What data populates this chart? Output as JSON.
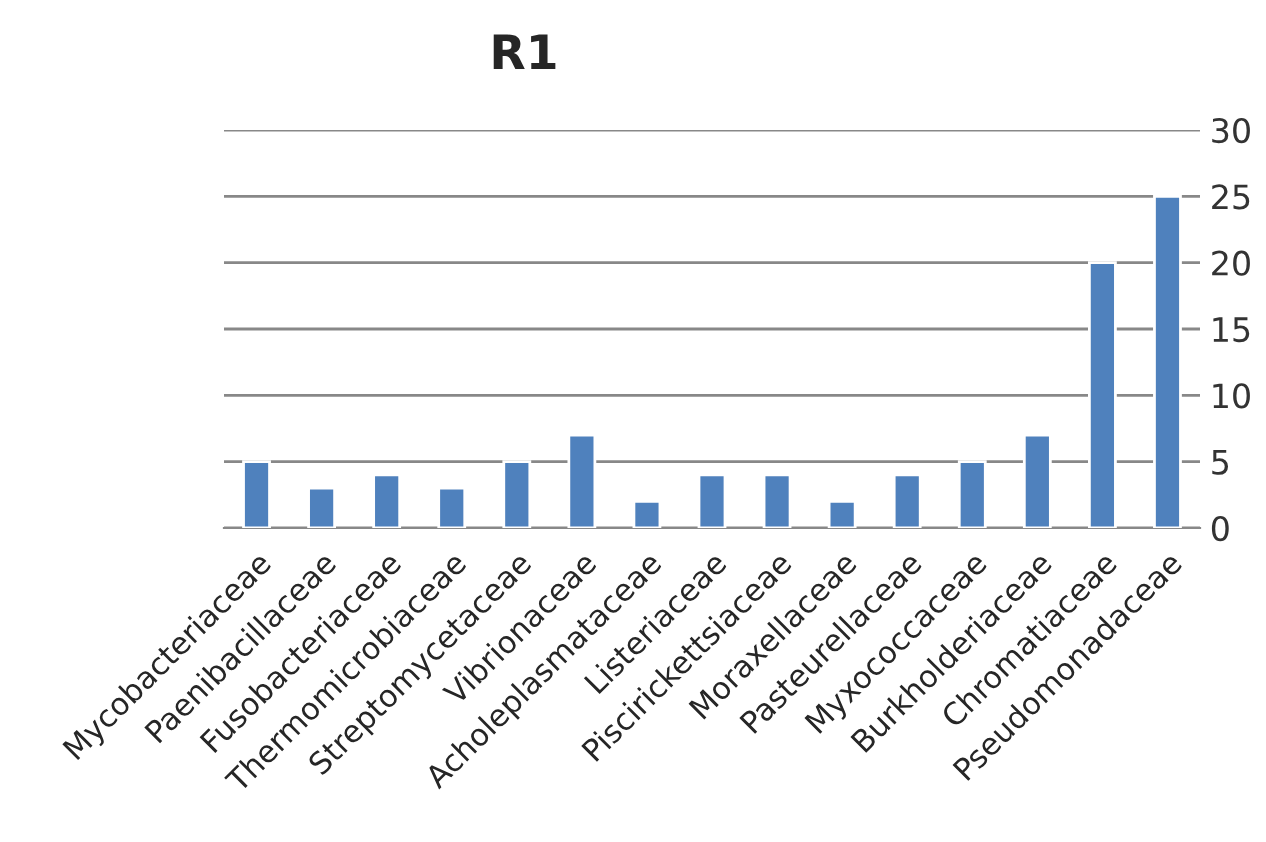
{
  "chart_data": {
    "type": "bar",
    "title": "R1",
    "categories": [
      "Mycobacteriaceae",
      "Paenibacillaceae",
      "Fusobacteriaceae",
      "Thermomicrobiaceae",
      "Streptomycetaceae",
      "Vibrionaceae",
      "Acholeplasmataceae",
      "Listeriaceae",
      "Piscirickettsiaceae",
      "Moraxellaceae",
      "Pasteurellaceae",
      "Myxococcaceae",
      "Burkholderiaceae",
      "Chromatiaceae",
      "Pseudomonadaceae"
    ],
    "values": [
      5,
      3,
      4,
      3,
      5,
      7,
      2,
      4,
      4,
      2,
      4,
      5,
      7,
      20,
      25
    ],
    "color": "#4f81bd",
    "ylim": [
      0,
      30
    ],
    "yticks": [
      0,
      5,
      10,
      15,
      20,
      25,
      30
    ],
    "grid": "y",
    "legend": false
  }
}
